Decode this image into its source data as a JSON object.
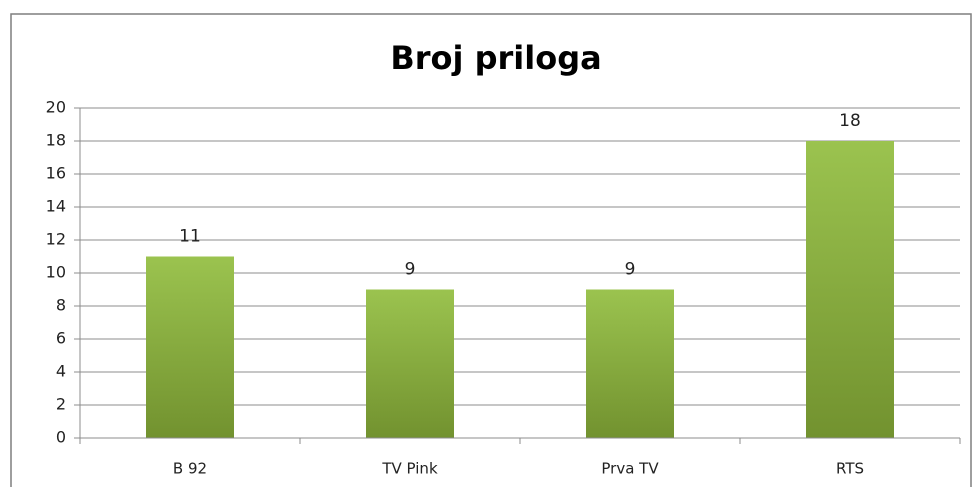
{
  "chart_data": {
    "type": "bar",
    "title": "Broj priloga",
    "categories": [
      "B 92",
      "TV Pink",
      "Prva TV",
      "RTS"
    ],
    "values": [
      11,
      9,
      9,
      18
    ],
    "color": "#9bc34f",
    "ylim": [
      0,
      20
    ],
    "yticks": [
      0,
      2,
      4,
      6,
      8,
      10,
      12,
      14,
      16,
      18,
      20
    ],
    "grid": true
  }
}
